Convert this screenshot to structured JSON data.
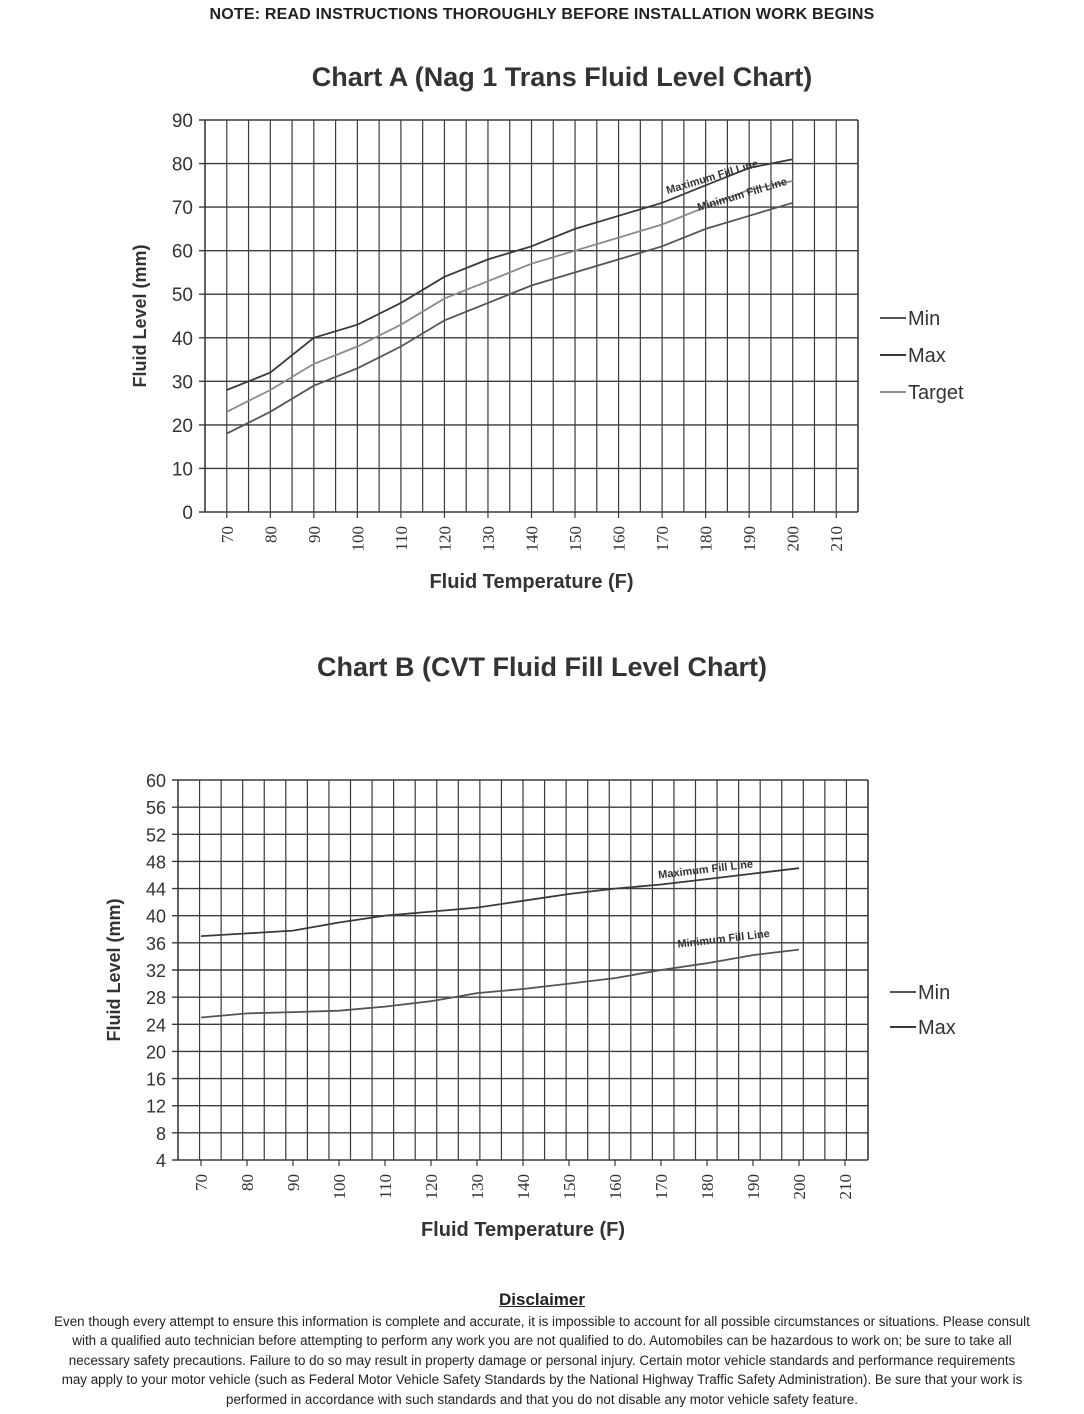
{
  "note": "NOTE: READ INSTRUCTIONS THOROUGHLY BEFORE INSTALLATION WORK BEGINS",
  "chart_data": [
    {
      "type": "line",
      "title": "Chart A (Nag 1 Trans Fluid Level Chart)",
      "xlabel": "Fluid Temperature (F)",
      "ylabel": "Fluid Level (mm)",
      "x_ticks": [
        "70",
        "80",
        "90",
        "100",
        "110",
        "120",
        "130",
        "140",
        "150",
        "160",
        "170",
        "180",
        "190",
        "200",
        "210"
      ],
      "y_ticks": [
        "0",
        "10",
        "20",
        "30",
        "40",
        "50",
        "60",
        "70",
        "80",
        "90"
      ],
      "ylim": [
        0,
        90
      ],
      "grid": true,
      "legend_position": "right",
      "x": [
        70,
        80,
        90,
        100,
        110,
        120,
        130,
        140,
        150,
        160,
        170,
        180,
        190,
        200
      ],
      "series": [
        {
          "name": "Min",
          "values": [
            18,
            23,
            29,
            33,
            38,
            44,
            48,
            52,
            55,
            58,
            61,
            65,
            68,
            71
          ],
          "color": "#555555"
        },
        {
          "name": "Max",
          "values": [
            28,
            32,
            40,
            43,
            48,
            54,
            58,
            61,
            65,
            68,
            71,
            75,
            79,
            81
          ],
          "color": "#3a3a3a"
        },
        {
          "name": "Target",
          "values": [
            23,
            28,
            34,
            38,
            43,
            49,
            53,
            57,
            60,
            63,
            66,
            70,
            74,
            76
          ],
          "color": "#8a8a8a"
        }
      ],
      "annotations": [
        "Maximum Fill Line",
        "Minimum Fill Line"
      ]
    },
    {
      "type": "line",
      "title": "Chart B (CVT Fluid Fill Level Chart)",
      "xlabel": "Fluid Temperature (F)",
      "ylabel": "Fluid Level (mm)",
      "x_ticks": [
        "70",
        "80",
        "90",
        "100",
        "110",
        "120",
        "130",
        "140",
        "150",
        "160",
        "170",
        "180",
        "190",
        "200",
        "210"
      ],
      "y_ticks": [
        "4",
        "8",
        "12",
        "16",
        "20",
        "24",
        "28",
        "32",
        "36",
        "40",
        "44",
        "48",
        "52",
        "56",
        "60"
      ],
      "ylim": [
        4,
        60
      ],
      "grid": true,
      "legend_position": "right",
      "x": [
        70,
        80,
        90,
        100,
        110,
        120,
        130,
        140,
        150,
        160,
        170,
        180,
        190,
        200
      ],
      "series": [
        {
          "name": "Min",
          "values": [
            25,
            25.6,
            25.8,
            26,
            26.6,
            27.4,
            28.6,
            29.2,
            30,
            30.8,
            32,
            33,
            34.2,
            35
          ],
          "color": "#555555"
        },
        {
          "name": "Max",
          "values": [
            37,
            37.4,
            37.8,
            39,
            40,
            40.6,
            41.2,
            42.2,
            43.2,
            44,
            44.6,
            45.4,
            46.2,
            47
          ],
          "color": "#3a3a3a"
        }
      ],
      "annotations": [
        "Maximum Fill Line",
        "Minimum Fill Line"
      ]
    }
  ],
  "disclaimer": {
    "heading": "Disclaimer",
    "lines": [
      "Even though every attempt to ensure this information is complete and accurate, it is impossible to account for all possible circumstances or situations.  Please consult",
      "with a qualified auto technician before attempting to perform any work you are not qualified to do.  Automobiles can be hazardous to work on; be sure to take all",
      "necessary safety precautions.  Failure to do so may result in property damage or personal injury.  Certain motor vehicle standards and performance requirements",
      "may apply to your motor vehicle (such as Federal Motor Vehicle Safety Standards by the National Highway Traffic Safety Administration).  Be sure that your work is",
      "performed in accordance with such standards and that you do not disable any motor vehicle safety feature."
    ]
  }
}
